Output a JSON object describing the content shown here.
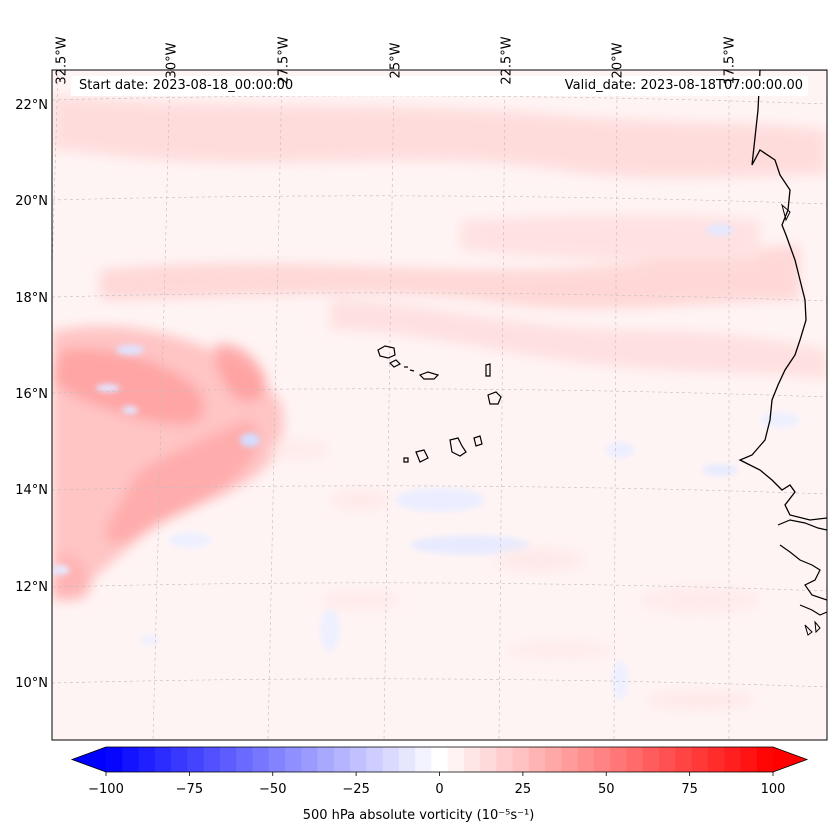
{
  "header": {
    "start_date": "Start date: 2023-08-18_00:00:00",
    "valid_date": "Valid_date: 2023-08-18T07:00:00.00"
  },
  "axes": {
    "lon_labels": [
      "32.5°W",
      "30°W",
      "27.5°W",
      "25°W",
      "22.5°W",
      "20°W",
      "17.5°W"
    ],
    "lat_labels": [
      "22°N",
      "20°N",
      "18°N",
      "16°N",
      "14°N",
      "12°N",
      "10°N"
    ]
  },
  "colorbar": {
    "ticks": [
      "−100",
      "−75",
      "−50",
      "−25",
      "0",
      "25",
      "50",
      "75",
      "100"
    ],
    "tick_values": [
      -100,
      -75,
      -50,
      -25,
      0,
      25,
      50,
      75,
      100
    ],
    "min": -100,
    "max": 100,
    "levels": 41,
    "label": "500 hPa absolute vorticity (10⁻⁵s⁻¹)"
  },
  "colors": {
    "negative_end": "#0000ff",
    "neutral": "#ffffff",
    "positive_end": "#ff0000",
    "coastline": "#000000",
    "grid": "#bbbbbb"
  },
  "map": {
    "region": "Eastern tropical North Atlantic, Cape Verde Islands, West African coast",
    "features": [
      "vorticity-field",
      "coastline",
      "cape-verde-islands",
      "graticule"
    ]
  }
}
